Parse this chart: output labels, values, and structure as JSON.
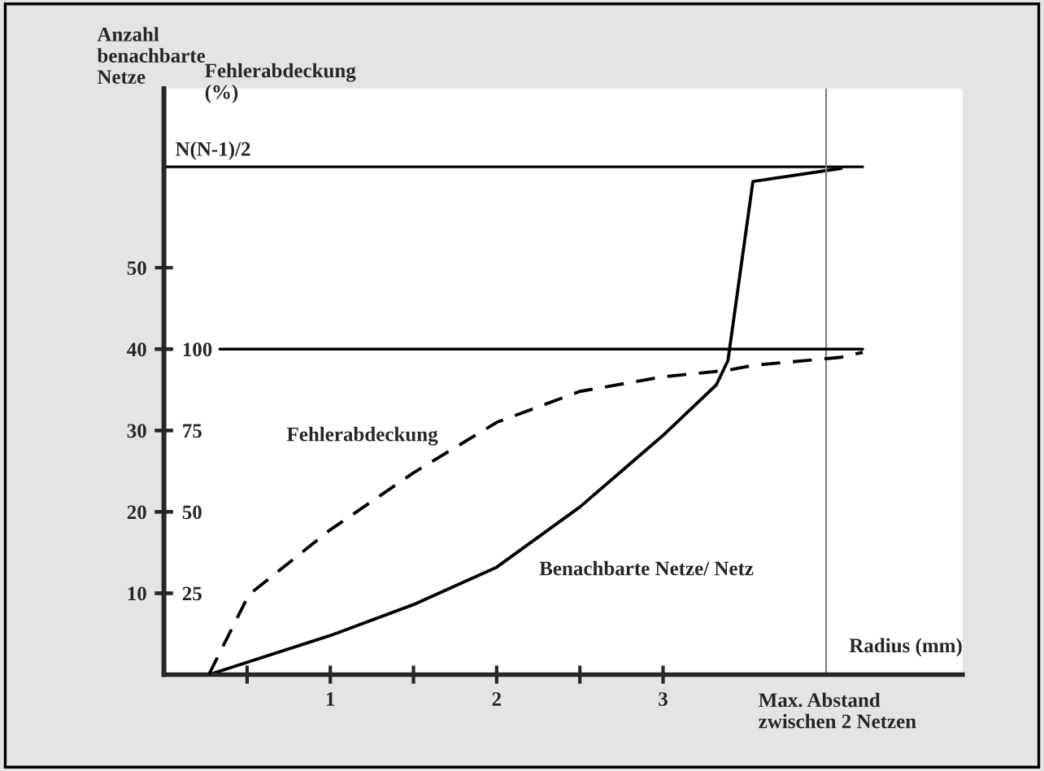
{
  "chart_data": {
    "type": "line",
    "ylabel": "Anzahl\nbenachbarte\nNetze",
    "y2label": "Fehlerabdeckung\n(%)",
    "xlabel": "Radius (mm)",
    "xlim": [
      0,
      4.8
    ],
    "xticks": [
      {
        "value": 0.5,
        "label": null
      },
      1,
      {
        "value": 1.5,
        "label": null
      },
      2,
      {
        "value": 2.5,
        "label": null
      },
      3
    ],
    "ylim": [
      0,
      72
    ],
    "yticks": [
      10,
      20,
      30,
      40,
      50
    ],
    "y2lim": [
      0,
      180
    ],
    "y2ticks": [
      25,
      50,
      75,
      100
    ],
    "series": [
      {
        "name": "Benachbarte Netze/ Netz",
        "color": "#000000",
        "line_style": "solid",
        "x": [
          0.27,
          1,
          1.5,
          2,
          2.5,
          3,
          3.32,
          3.39,
          3.54,
          4.07
        ],
        "values": [
          0,
          4.8,
          8.6,
          13.2,
          20.6,
          29.4,
          35.6,
          38.6,
          60.6,
          62.2
        ]
      },
      {
        "name": "Fehlerabdeckung",
        "color": "#000000",
        "line_style": "dashed",
        "axis": "y2",
        "x": [
          0.27,
          0.51,
          1,
          1.5,
          2,
          2.5,
          3,
          3.39,
          3.54,
          4.07,
          4.2
        ],
        "values": [
          0,
          24.5,
          44.5,
          62,
          77.5,
          87,
          91.5,
          93.5,
          95,
          97.5,
          99
        ]
      }
    ],
    "ref_lines": [
      {
        "axis": "y",
        "value": 62.4,
        "label": "N(N-1)/2",
        "color": "#000000"
      },
      {
        "axis": "y2",
        "value": 100,
        "color": "#000000"
      },
      {
        "axis": "x",
        "value": 3.98,
        "label": "Max. Abstand\nzwischen 2 Netzen",
        "color": "#808080"
      }
    ],
    "grid": false,
    "marker": "none"
  }
}
